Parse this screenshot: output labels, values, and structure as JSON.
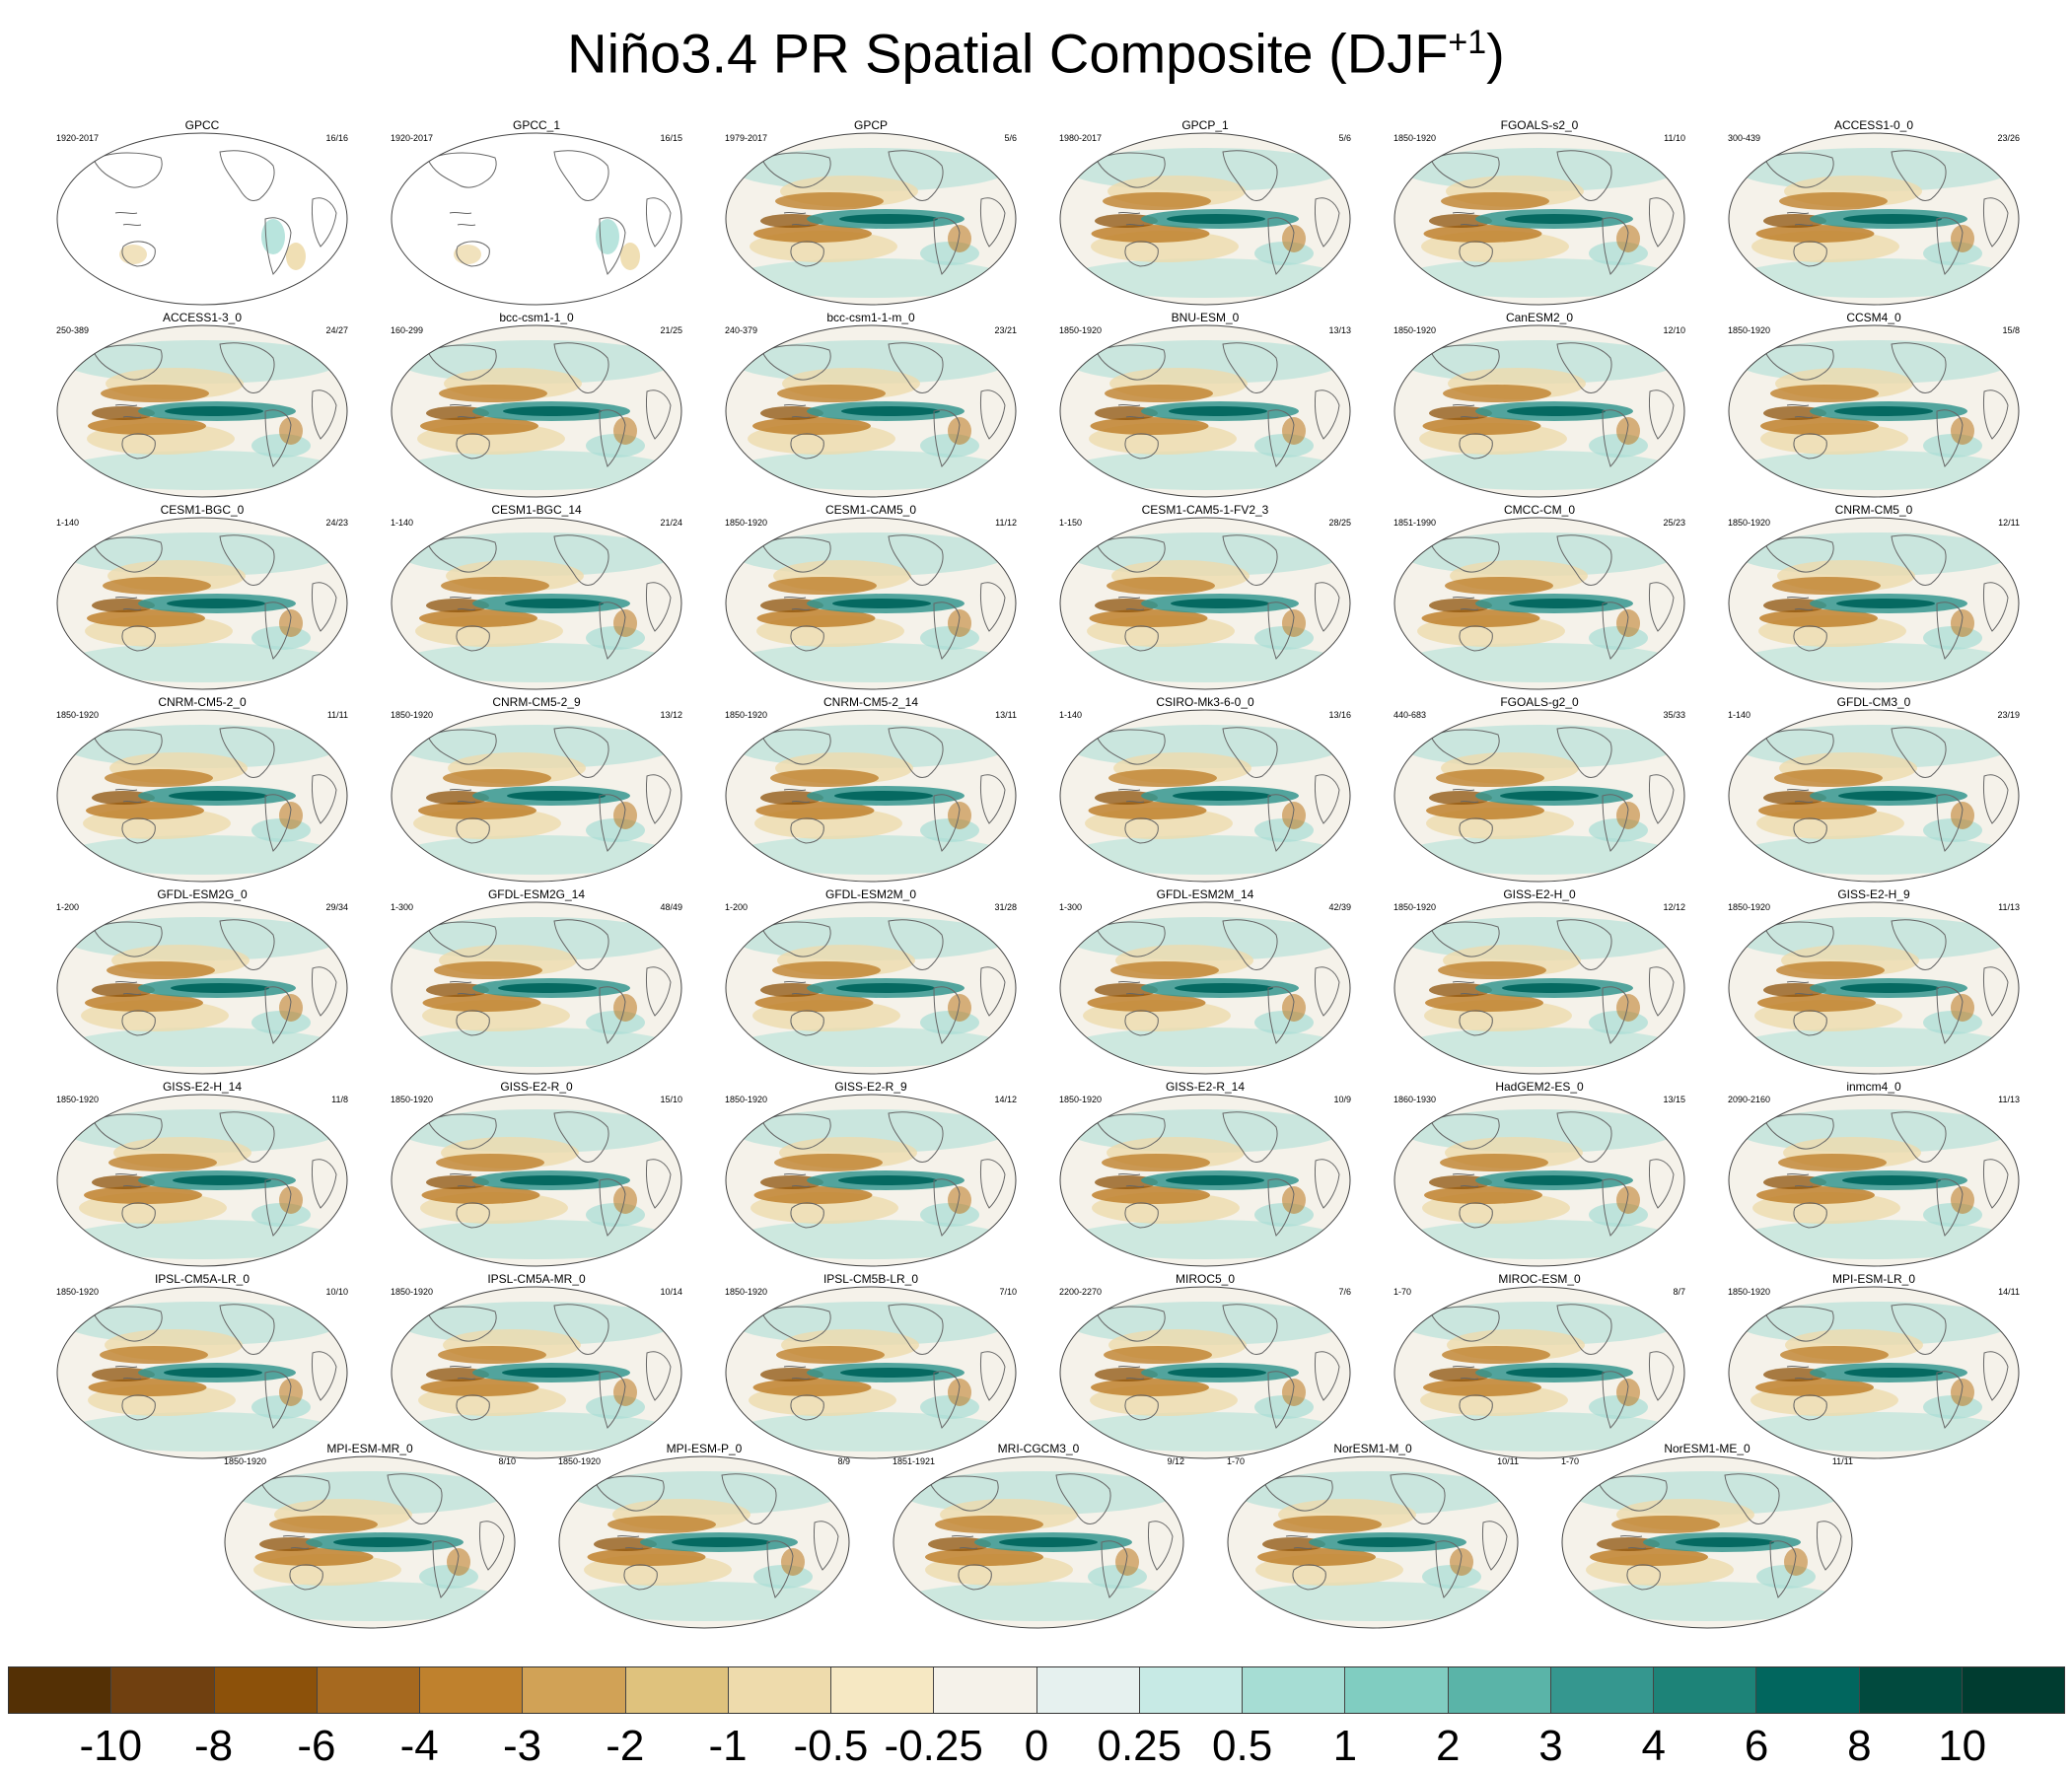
{
  "title": {
    "main": "Niño3.4 PR Spatial Composite (DJF",
    "superscript": "+1",
    "close": ")"
  },
  "panels": [
    {
      "name": "GPCC",
      "period": "1920-2017",
      "count": "16/16",
      "pattern": "obs-land"
    },
    {
      "name": "GPCC_1",
      "period": "1920-2017",
      "count": "16/15",
      "pattern": "obs-land"
    },
    {
      "name": "GPCP",
      "period": "1979-2017",
      "count": "5/6",
      "pattern": "obs"
    },
    {
      "name": "GPCP_1",
      "period": "1980-2017",
      "count": "5/6",
      "pattern": "obs"
    },
    {
      "name": "FGOALS-s2_0",
      "period": "1850-1920",
      "count": "11/10",
      "pattern": "model"
    },
    {
      "name": "ACCESS1-0_0",
      "period": "300-439",
      "count": "23/26",
      "pattern": "model"
    },
    {
      "name": "ACCESS1-3_0",
      "period": "250-389",
      "count": "24/27",
      "pattern": "model"
    },
    {
      "name": "bcc-csm1-1_0",
      "period": "160-299",
      "count": "21/25",
      "pattern": "model"
    },
    {
      "name": "bcc-csm1-1-m_0",
      "period": "240-379",
      "count": "23/21",
      "pattern": "model"
    },
    {
      "name": "BNU-ESM_0",
      "period": "1850-1920",
      "count": "13/13",
      "pattern": "model"
    },
    {
      "name": "CanESM2_0",
      "period": "1850-1920",
      "count": "12/10",
      "pattern": "model"
    },
    {
      "name": "CCSM4_0",
      "period": "1850-1920",
      "count": "15/8",
      "pattern": "model"
    },
    {
      "name": "CESM1-BGC_0",
      "period": "1-140",
      "count": "24/23",
      "pattern": "model"
    },
    {
      "name": "CESM1-BGC_14",
      "period": "1-140",
      "count": "21/24",
      "pattern": "model"
    },
    {
      "name": "CESM1-CAM5_0",
      "period": "1850-1920",
      "count": "11/12",
      "pattern": "model"
    },
    {
      "name": "CESM1-CAM5-1-FV2_3",
      "period": "1-150",
      "count": "28/25",
      "pattern": "model"
    },
    {
      "name": "CMCC-CM_0",
      "period": "1851-1990",
      "count": "25/23",
      "pattern": "model"
    },
    {
      "name": "CNRM-CM5_0",
      "period": "1850-1920",
      "count": "12/11",
      "pattern": "model"
    },
    {
      "name": "CNRM-CM5-2_0",
      "period": "1850-1920",
      "count": "11/11",
      "pattern": "model"
    },
    {
      "name": "CNRM-CM5-2_9",
      "period": "1850-1920",
      "count": "13/12",
      "pattern": "model"
    },
    {
      "name": "CNRM-CM5-2_14",
      "period": "1850-1920",
      "count": "13/11",
      "pattern": "model"
    },
    {
      "name": "CSIRO-Mk3-6-0_0",
      "period": "1-140",
      "count": "13/16",
      "pattern": "model"
    },
    {
      "name": "FGOALS-g2_0",
      "period": "440-683",
      "count": "35/33",
      "pattern": "model"
    },
    {
      "name": "GFDL-CM3_0",
      "period": "1-140",
      "count": "23/19",
      "pattern": "model"
    },
    {
      "name": "GFDL-ESM2G_0",
      "period": "1-200",
      "count": "29/34",
      "pattern": "model"
    },
    {
      "name": "GFDL-ESM2G_14",
      "period": "1-300",
      "count": "48/49",
      "pattern": "model"
    },
    {
      "name": "GFDL-ESM2M_0",
      "period": "1-200",
      "count": "31/28",
      "pattern": "model"
    },
    {
      "name": "GFDL-ESM2M_14",
      "period": "1-300",
      "count": "42/39",
      "pattern": "model"
    },
    {
      "name": "GISS-E2-H_0",
      "period": "1850-1920",
      "count": "12/12",
      "pattern": "model"
    },
    {
      "name": "GISS-E2-H_9",
      "period": "1850-1920",
      "count": "11/13",
      "pattern": "model"
    },
    {
      "name": "GISS-E2-H_14",
      "period": "1850-1920",
      "count": "11/8",
      "pattern": "model"
    },
    {
      "name": "GISS-E2-R_0",
      "period": "1850-1920",
      "count": "15/10",
      "pattern": "model"
    },
    {
      "name": "GISS-E2-R_9",
      "period": "1850-1920",
      "count": "14/12",
      "pattern": "model"
    },
    {
      "name": "GISS-E2-R_14",
      "period": "1850-1920",
      "count": "10/9",
      "pattern": "model"
    },
    {
      "name": "HadGEM2-ES_0",
      "period": "1860-1930",
      "count": "13/15",
      "pattern": "model"
    },
    {
      "name": "inmcm4_0",
      "period": "2090-2160",
      "count": "11/13",
      "pattern": "model"
    },
    {
      "name": "IPSL-CM5A-LR_0",
      "period": "1850-1920",
      "count": "10/10",
      "pattern": "model"
    },
    {
      "name": "IPSL-CM5A-MR_0",
      "period": "1850-1920",
      "count": "10/14",
      "pattern": "model"
    },
    {
      "name": "IPSL-CM5B-LR_0",
      "period": "1850-1920",
      "count": "7/10",
      "pattern": "model"
    },
    {
      "name": "MIROC5_0",
      "period": "2200-2270",
      "count": "7/6",
      "pattern": "model"
    },
    {
      "name": "MIROC-ESM_0",
      "period": "1-70",
      "count": "8/7",
      "pattern": "model"
    },
    {
      "name": "MPI-ESM-LR_0",
      "period": "1850-1920",
      "count": "14/11",
      "pattern": "model"
    },
    {
      "name": "MPI-ESM-MR_0",
      "period": "1850-1920",
      "count": "8/10",
      "pattern": "model"
    },
    {
      "name": "MPI-ESM-P_0",
      "period": "1850-1920",
      "count": "8/9",
      "pattern": "model"
    },
    {
      "name": "MRI-CGCM3_0",
      "period": "1851-1921",
      "count": "9/12",
      "pattern": "model"
    },
    {
      "name": "NorESM1-M_0",
      "period": "1-70",
      "count": "10/11",
      "pattern": "model"
    },
    {
      "name": "NorESM1-ME_0",
      "period": "1-70",
      "count": "11/11",
      "pattern": "model"
    }
  ],
  "colorbar": {
    "colors": [
      "#543005",
      "#704010",
      "#8c510a",
      "#a6691f",
      "#bf812d",
      "#d1a256",
      "#dfc27d",
      "#eedbac",
      "#f6e8c3",
      "#f5f2ea",
      "#e6f1ef",
      "#c7eae5",
      "#a6ddd4",
      "#80cdc1",
      "#5ab4a8",
      "#35978f",
      "#1d8378",
      "#01665e",
      "#014a3e",
      "#003c30"
    ],
    "labels": [
      "-10",
      "-8",
      "-6",
      "-4",
      "-3",
      "-2",
      "-1",
      "-0.5",
      "-0.25",
      "0",
      "0.25",
      "0.5",
      "1",
      "2",
      "3",
      "4",
      "6",
      "8",
      "10"
    ]
  },
  "palette": {
    "dry_strong": "#8c510a",
    "dry": "#bf812d",
    "dry_light": "#eedbac",
    "wet_strong": "#01665e",
    "wet": "#35978f",
    "wet_light": "#a6ddd4",
    "neutral": "#f5f2ea",
    "coast": "#666666"
  }
}
